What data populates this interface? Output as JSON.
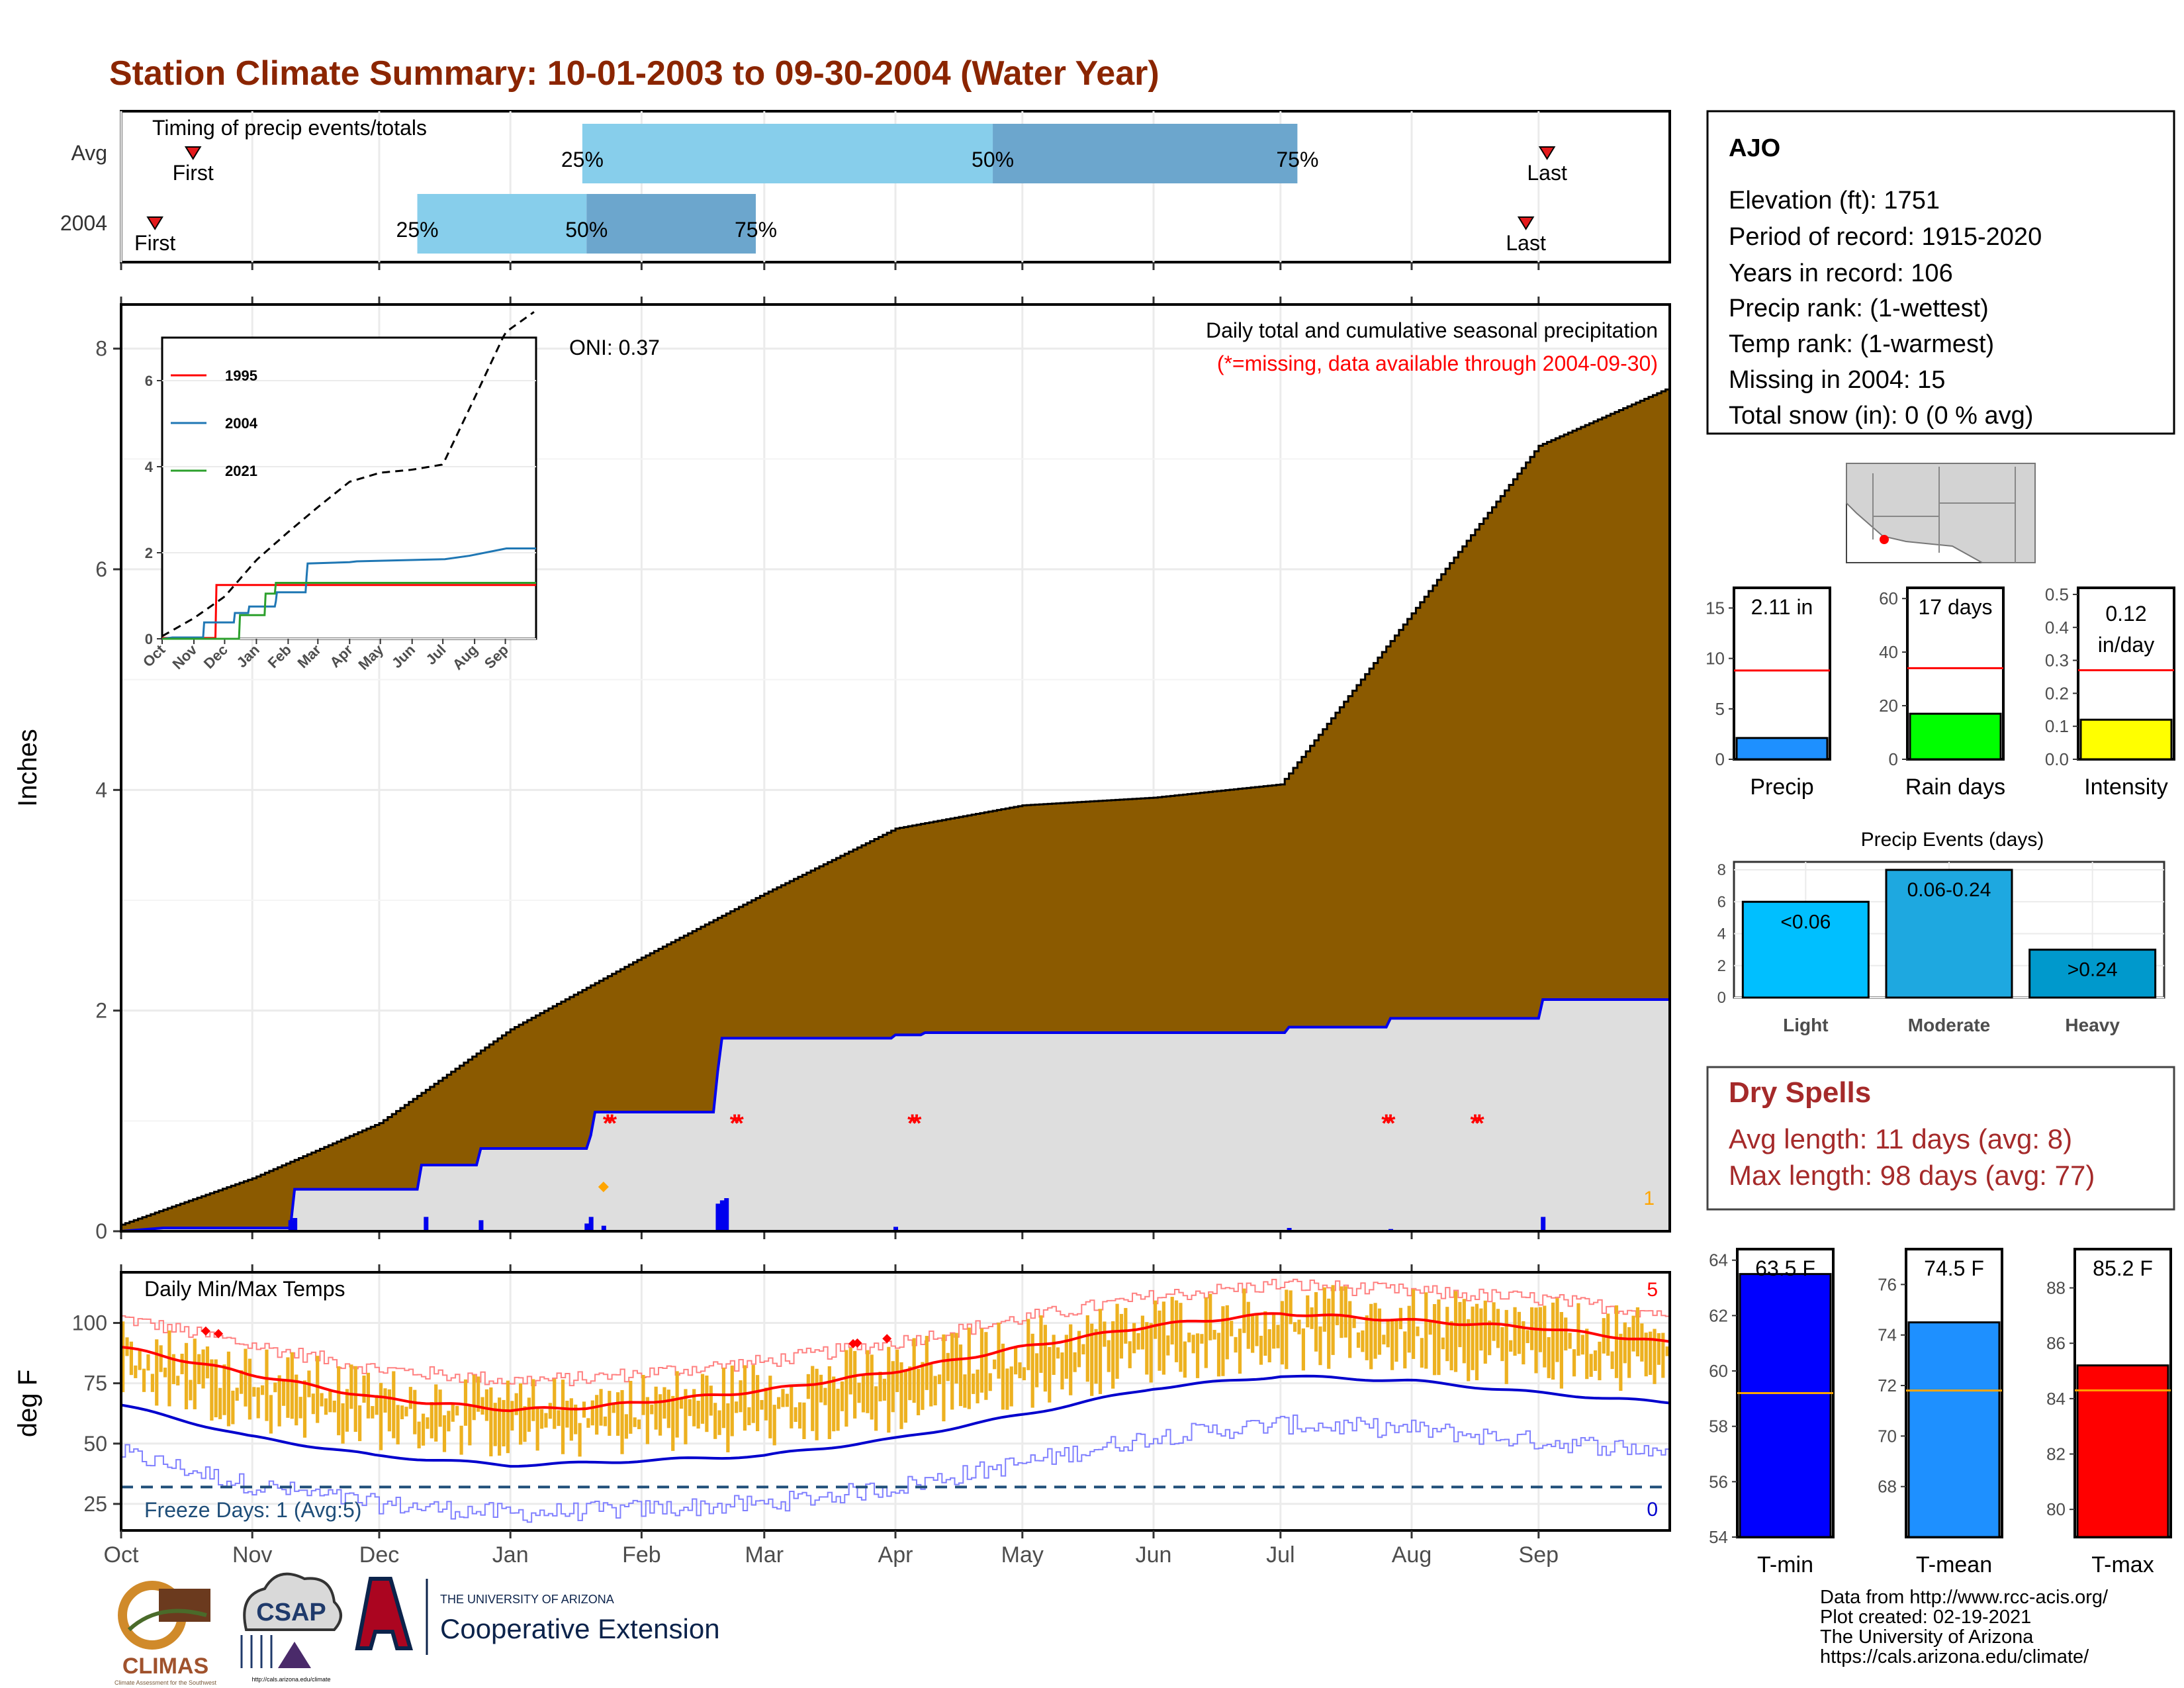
{
  "title": "Station Climate Summary: 10-01-2003 to 09-30-2004 (Water Year)",
  "colors": {
    "title": "#8B2500",
    "brown": "#8B5A00",
    "gray_fill": "#DEDEDE",
    "blue_line": "#0000EE",
    "missing": "#FF0000",
    "light_blue": "#87CEEB",
    "mid_blue": "#6CA6CD",
    "temp_bar": "#EDB120",
    "avg_max": "#FF0000",
    "avg_min": "#0000CD",
    "dry_spells": "#A52A2A"
  },
  "timing": {
    "label": "Timing of precip events/totals",
    "rows": [
      {
        "row_label": "Avg",
        "first_label": "First",
        "last_label": "Last",
        "first_doy": 17,
        "last_doy": 337,
        "p25": 109,
        "p50": 206,
        "p75": 278,
        "l25": "25%",
        "l50": "50%",
        "l75": "75%"
      },
      {
        "row_label": "2004",
        "first_label": "First",
        "last_label": "Last",
        "first_doy": 8,
        "last_doy": 332,
        "p25": 70,
        "p50": 110,
        "p75": 150,
        "l25": "25%",
        "l50": "50%",
        "l75": "75%"
      }
    ]
  },
  "months": [
    "Oct",
    "Nov",
    "Dec",
    "Jan",
    "Feb",
    "Mar",
    "Apr",
    "May",
    "Jun",
    "Jul",
    "Aug",
    "Sep"
  ],
  "chart_data": [
    {
      "id": "cumulative_precip",
      "type": "area",
      "ylabel": "Inches",
      "ylim": [
        0,
        8.4
      ],
      "yticks": [
        0,
        2,
        4,
        6,
        8
      ],
      "header": "Daily total and cumulative seasonal precipitation",
      "subheader": "(*=missing, data available through 2004-09-30)",
      "oni": "ONI: 0.37",
      "corner_count": "1",
      "avg_cum_curve": {
        "x": [
          0,
          31,
          61,
          92,
          123,
          152,
          183,
          213,
          244,
          274,
          305,
          335,
          365
        ],
        "y": [
          0.06,
          0.48,
          0.98,
          1.83,
          2.48,
          3.06,
          3.65,
          3.86,
          3.93,
          4.05,
          5.6,
          7.12,
          7.63
        ]
      },
      "obs_2004_cum": {
        "x": [
          0,
          10,
          40,
          41,
          70,
          71,
          84,
          85,
          110,
          111,
          112,
          140,
          141,
          142,
          151,
          152,
          182,
          183,
          189,
          190,
          275,
          276,
          299,
          300,
          335,
          336,
          366
        ],
        "y": [
          0,
          0.03,
          0.03,
          0.38,
          0.38,
          0.6,
          0.6,
          0.75,
          0.75,
          0.87,
          1.08,
          1.08,
          1.45,
          1.75,
          1.75,
          1.75,
          1.75,
          1.78,
          1.78,
          1.8,
          1.8,
          1.85,
          1.85,
          1.93,
          1.93,
          2.1,
          2.1
        ]
      },
      "daily_bars": {
        "x": [
          40,
          41,
          72,
          85,
          110,
          111,
          114,
          141,
          142,
          143,
          183,
          276,
          300,
          336
        ],
        "y": [
          0.1,
          0.12,
          0.13,
          0.1,
          0.07,
          0.13,
          0.05,
          0.25,
          0.28,
          0.3,
          0.04,
          0.03,
          0.02,
          0.13
        ]
      },
      "missing_doy": [
        115,
        116,
        145,
        146,
        187,
        188,
        299,
        300,
        320,
        321
      ],
      "snow_marker_doy": 114,
      "inset": {
        "yticks": [
          0,
          2,
          4,
          6
        ],
        "ylim": [
          0,
          7.0
        ],
        "months": [
          "Oct",
          "Nov",
          "Dec",
          "Jan",
          "Feb",
          "Mar",
          "Apr",
          "May",
          "Jun",
          "Jul",
          "Aug",
          "Sep"
        ],
        "series": [
          {
            "name": "1995",
            "color": "#FF0000",
            "x": [
              0,
              52,
              53,
              365
            ],
            "y": [
              0.02,
              0.02,
              1.25,
              1.25
            ]
          },
          {
            "name": "2004",
            "color": "#1F77B4",
            "x": [
              0,
              10,
              40,
              41,
              70,
              71,
              84,
              85,
              110,
              111,
              112,
              140,
              141,
              142,
              183,
              190,
              276,
              300,
              336,
              365
            ],
            "y": [
              0,
              0.03,
              0.03,
              0.38,
              0.38,
              0.6,
              0.6,
              0.75,
              0.75,
              0.87,
              1.08,
              1.08,
              1.45,
              1.75,
              1.78,
              1.8,
              1.85,
              1.93,
              2.1,
              2.1
            ]
          },
          {
            "name": "2021",
            "color": "#2CA02C",
            "x": [
              0,
              75,
              76,
              100,
              101,
              110,
              111,
              365
            ],
            "y": [
              0,
              0,
              0.55,
              0.55,
              1.05,
              1.05,
              1.3,
              1.3
            ]
          }
        ],
        "avg_curve": {
          "x": [
            0,
            31,
            61,
            92,
            123,
            152,
            183,
            213,
            244,
            274,
            305,
            335,
            365
          ],
          "y": [
            0.06,
            0.48,
            0.98,
            1.83,
            2.48,
            3.06,
            3.65,
            3.86,
            3.93,
            4.05,
            5.6,
            7.12,
            7.63
          ]
        }
      }
    },
    {
      "id": "daily_temps",
      "type": "bar",
      "label": "Daily Min/Max Temps",
      "ylabel": "deg F",
      "ylim": [
        14,
        121
      ],
      "yticks": [
        25,
        50,
        75,
        100
      ],
      "freeze_line": 32,
      "freeze_label": "Freeze Days: 1 (Avg:5)",
      "top_count": "5",
      "bottom_count": "0",
      "avg_max": {
        "x": [
          0,
          30,
          60,
          92,
          110,
          152,
          183,
          213,
          244,
          274,
          305,
          335,
          365
        ],
        "y": [
          90,
          79,
          69,
          64,
          65,
          72,
          80,
          90,
          99,
          104,
          101,
          98,
          92
        ]
      },
      "avg_min": {
        "x": [
          0,
          30,
          60,
          92,
          110,
          152,
          183,
          213,
          244,
          274,
          305,
          335,
          365
        ],
        "y": [
          66,
          53,
          45,
          41,
          42,
          45,
          52,
          62,
          73,
          78,
          76,
          71,
          67
        ]
      },
      "record_dots_doy": [
        20,
        23,
        173,
        174,
        181
      ]
    },
    {
      "id": "precip_summary",
      "type": "bar",
      "panels": [
        {
          "label": "Precip",
          "value": 2.11,
          "value_label": "2.11 in",
          "avg": 8.8,
          "ylim": [
            0,
            17
          ],
          "yticks": [
            0,
            5,
            10,
            15
          ],
          "color": "#1E90FF"
        },
        {
          "label": "Rain days",
          "value": 17,
          "value_label": "17 days",
          "avg": 34,
          "ylim": [
            0,
            64
          ],
          "yticks": [
            0,
            20,
            40,
            60
          ],
          "color": "#00FF00"
        },
        {
          "label": "Intensity",
          "value": 0.12,
          "value_label": "0.12 in/day",
          "avg": 0.27,
          "ylim": [
            0,
            0.52
          ],
          "yticks": [
            0.0,
            0.1,
            0.2,
            0.3,
            0.4,
            0.5
          ],
          "color": "#FFFF00"
        }
      ]
    },
    {
      "id": "precip_events",
      "type": "bar",
      "title": "Precip Events (days)",
      "categories": [
        "Light",
        "Moderate",
        "Heavy"
      ],
      "values": [
        6,
        8,
        3
      ],
      "value_labels": [
        "<0.06",
        "0.06-0.24",
        ">0.24"
      ],
      "ylim": [
        0,
        8.5
      ],
      "yticks": [
        0,
        2,
        4,
        6,
        8
      ],
      "colors": [
        "#00BFFF",
        "#1EA8E0",
        "#0099CC"
      ]
    },
    {
      "id": "temp_summary",
      "type": "bar",
      "panels": [
        {
          "label": "T-min",
          "value": 63.5,
          "value_label": "63.5 F",
          "avg": 59.2,
          "ylim": [
            54,
            64.4
          ],
          "yticks": [
            54,
            56,
            58,
            60,
            62,
            64
          ],
          "color": "#0000FF"
        },
        {
          "label": "T-mean",
          "value": 74.5,
          "value_label": "74.5 F",
          "avg": 71.8,
          "ylim": [
            66,
            77.4
          ],
          "yticks": [
            68,
            70,
            72,
            74,
            76
          ],
          "color": "#1E90FF"
        },
        {
          "label": "T-max",
          "value": 85.2,
          "value_label": "85.2 F",
          "avg": 84.3,
          "ylim": [
            79,
            89.4
          ],
          "yticks": [
            80,
            82,
            84,
            86,
            88
          ],
          "color": "#FF0000"
        }
      ]
    }
  ],
  "station": {
    "name": "AJO",
    "lines": [
      "Elevation (ft): 1751",
      "Period of record: 1915-2020",
      "Years in record: 106",
      "Precip rank:  (1-wettest)",
      "Temp rank:  (1-warmest)",
      "Missing in 2004: 15",
      "Total snow (in): 0 (0 % avg)"
    ]
  },
  "dry_spells": {
    "title": "Dry Spells",
    "avg_line": "Avg length: 11 days (avg: 8)",
    "max_line": "Max length: 98 days (avg: 77)"
  },
  "footer": {
    "lines": [
      "Data from http://www.rcc-acis.org/",
      "Plot created: 02-19-2021",
      "The University of Arizona",
      "https://cals.arizona.edu/climate/"
    ]
  },
  "logos": {
    "climas": "CLIMAS",
    "climas_sub": "Climate Assessment for the Southwest",
    "csap": "CSAP",
    "csap_url": "http://cals.arizona.edu/climate",
    "ua_small": "THE UNIVERSITY OF ARIZONA",
    "ua_big": "Cooperative Extension"
  },
  "map": {
    "station_dot": "#FF0000"
  }
}
